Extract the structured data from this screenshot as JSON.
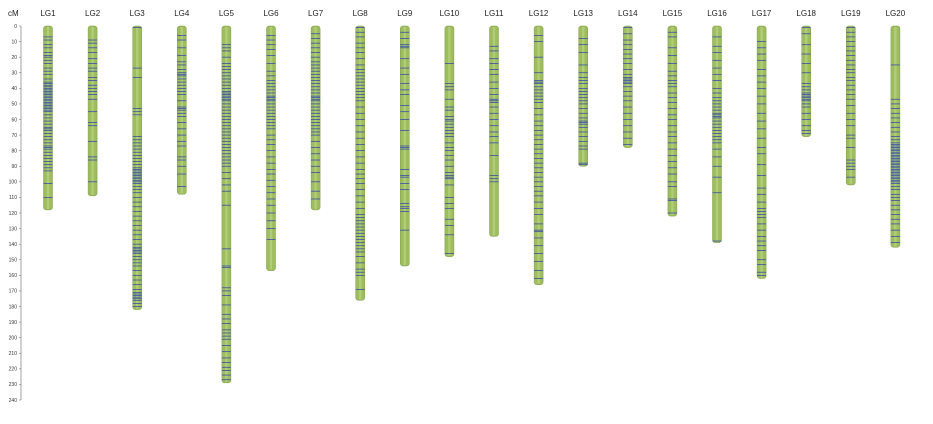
{
  "axis": {
    "label": "cM",
    "max": 240,
    "ticks": [
      0,
      10,
      20,
      30,
      40,
      50,
      60,
      70,
      80,
      90,
      100,
      110,
      120,
      130,
      140,
      150,
      160,
      170,
      180,
      190,
      200,
      210,
      220,
      230,
      240
    ]
  },
  "colors": {
    "bar": "#9dbd5f",
    "bar_edge": "#7f9c47",
    "marker": "#2b3fb5",
    "axis": "#666666"
  },
  "linkage_groups": [
    {
      "name": "LG1",
      "length": 118,
      "markers": [
        7,
        9,
        12,
        14,
        17,
        19,
        20,
        22,
        24,
        27,
        29,
        31,
        34,
        36,
        37,
        38,
        39,
        40,
        41,
        42,
        43,
        44,
        45,
        46,
        47,
        48,
        49,
        50,
        51,
        52,
        53,
        54,
        55,
        57,
        59,
        61,
        63,
        65,
        66,
        67,
        69,
        71,
        73,
        75,
        77,
        78,
        79,
        81,
        83,
        85,
        87,
        89,
        91,
        93,
        101,
        110
      ]
    },
    {
      "name": "LG2",
      "length": 109,
      "markers": [
        9,
        11,
        14,
        17,
        21,
        24,
        27,
        29,
        33,
        35,
        38,
        40,
        42,
        44,
        47,
        55,
        62,
        64,
        74,
        84,
        86,
        100
      ]
    },
    {
      "name": "LG3",
      "length": 182,
      "markers": [
        1,
        27,
        33,
        53,
        55,
        57,
        71,
        73,
        75,
        77,
        79,
        81,
        83,
        85,
        87,
        89,
        91,
        92,
        93,
        94,
        95,
        96,
        97,
        98,
        99,
        100,
        101,
        103,
        105,
        107,
        110,
        113,
        116,
        119,
        122,
        125,
        128,
        131,
        134,
        137,
        140,
        142,
        143,
        144,
        145,
        146,
        148,
        150,
        152,
        154,
        157,
        160,
        163,
        166,
        169,
        171,
        172,
        173,
        174,
        175,
        176,
        178,
        180
      ]
    },
    {
      "name": "LG4",
      "length": 108,
      "markers": [
        6,
        9,
        14,
        19,
        23,
        25,
        28,
        30,
        31,
        32,
        34,
        36,
        38,
        40,
        42,
        44,
        48,
        52,
        53,
        54,
        56,
        58,
        62,
        66,
        70,
        74,
        77,
        84,
        86,
        90,
        95,
        103
      ]
    },
    {
      "name": "LG5",
      "length": 229,
      "markers": [
        12,
        14,
        16,
        20,
        24,
        26,
        28,
        30,
        32,
        34,
        36,
        38,
        40,
        42,
        43,
        44,
        45,
        46,
        47,
        48,
        50,
        52,
        54,
        56,
        58,
        60,
        62,
        64,
        66,
        68,
        70,
        72,
        74,
        76,
        78,
        80,
        82,
        84,
        86,
        88,
        90,
        94,
        98,
        102,
        106,
        115,
        143,
        154,
        155,
        168,
        170,
        173,
        179,
        185,
        188,
        191,
        195,
        197,
        199,
        201,
        205,
        209,
        213,
        216,
        219,
        221,
        224,
        227
      ]
    },
    {
      "name": "LG6",
      "length": 157,
      "markers": [
        6,
        9,
        12,
        15,
        19,
        24,
        29,
        32,
        35,
        37,
        39,
        41,
        43,
        45,
        46,
        47,
        48,
        50,
        52,
        54,
        56,
        58,
        60,
        62,
        64,
        66,
        70,
        73,
        76,
        80,
        84,
        88,
        92,
        95,
        99,
        103,
        107,
        111,
        115,
        120,
        125,
        130,
        137
      ]
    },
    {
      "name": "LG7",
      "length": 118,
      "markers": [
        5,
        8,
        11,
        14,
        17,
        20,
        23,
        25,
        27,
        29,
        31,
        33,
        35,
        37,
        39,
        41,
        43,
        45,
        46,
        47,
        48,
        50,
        52,
        54,
        56,
        58,
        60,
        62,
        64,
        66,
        68,
        70,
        74,
        78,
        82,
        86,
        90,
        94,
        100,
        106,
        111
      ]
    },
    {
      "name": "LG8",
      "length": 176,
      "markers": [
        1,
        4,
        7,
        11,
        14,
        17,
        21,
        25,
        28,
        30,
        32,
        34,
        36,
        38,
        40,
        42,
        44,
        46,
        48,
        52,
        56,
        60,
        64,
        68,
        72,
        76,
        80,
        84,
        88,
        92,
        95,
        98,
        101,
        105,
        109,
        113,
        117,
        121,
        123,
        125,
        127,
        129,
        131,
        133,
        135,
        137,
        139,
        141,
        143,
        145,
        148,
        152,
        156,
        158,
        160,
        169
      ]
    },
    {
      "name": "LG9",
      "length": 154,
      "markers": [
        4,
        8,
        12,
        13,
        14,
        21,
        27,
        31,
        37,
        41,
        44,
        51,
        55,
        60,
        67,
        77,
        78,
        79,
        92,
        96,
        97,
        101,
        105,
        114,
        116,
        117,
        119,
        131
      ]
    },
    {
      "name": "LG10",
      "length": 148,
      "markers": [
        24,
        37,
        39,
        41,
        47,
        52,
        54,
        58,
        60,
        61,
        63,
        65,
        67,
        69,
        71,
        75,
        78,
        80,
        83,
        86,
        90,
        94,
        96,
        97,
        98,
        102,
        110,
        114,
        117,
        124,
        128,
        134,
        146
      ]
    },
    {
      "name": "LG11",
      "length": 135,
      "markers": [
        13,
        16,
        21,
        24,
        28,
        31,
        36,
        40,
        44,
        47,
        48,
        49,
        52,
        56,
        60,
        64,
        68,
        71,
        75,
        83,
        96,
        98,
        100
      ]
    },
    {
      "name": "LG12",
      "length": 166,
      "markers": [
        6,
        10,
        20,
        30,
        35,
        36,
        37,
        39,
        41,
        43,
        45,
        47,
        49,
        53,
        57,
        61,
        64,
        67,
        70,
        73,
        76,
        79,
        82,
        85,
        88,
        91,
        94,
        97,
        100,
        103,
        106,
        109,
        113,
        117,
        121,
        127,
        131,
        132,
        136,
        141,
        146,
        151,
        157,
        162
      ]
    },
    {
      "name": "LG13",
      "length": 90,
      "markers": [
        8,
        12,
        17,
        25,
        30,
        33,
        35,
        37,
        40,
        42,
        44,
        46,
        48,
        50,
        53,
        56,
        59,
        61,
        62,
        63,
        65,
        68,
        71,
        74,
        77,
        79,
        88,
        89
      ]
    },
    {
      "name": "LG14",
      "length": 78,
      "markers": [
        1,
        5,
        9,
        12,
        15,
        18,
        21,
        24,
        28,
        31,
        33,
        34,
        35,
        36,
        37,
        39,
        42,
        45,
        48,
        52,
        56,
        60,
        64,
        68,
        72,
        76
      ]
    },
    {
      "name": "LG15",
      "length": 122,
      "markers": [
        4,
        7,
        14,
        19,
        24,
        29,
        32,
        35,
        37,
        39,
        43,
        46,
        49,
        53,
        57,
        60,
        64,
        68,
        71,
        75,
        79,
        83,
        87,
        91,
        95,
        100,
        103,
        111,
        112,
        120
      ]
    },
    {
      "name": "LG16",
      "length": 139,
      "markers": [
        7,
        13,
        17,
        22,
        27,
        31,
        35,
        40,
        43,
        46,
        48,
        50,
        52,
        54,
        56,
        57,
        58,
        59,
        61,
        63,
        65,
        67,
        69,
        71,
        73,
        75,
        79,
        84,
        90,
        97,
        107,
        138
      ]
    },
    {
      "name": "LG17",
      "length": 162,
      "markers": [
        10,
        14,
        18,
        22,
        28,
        32,
        36,
        40,
        45,
        50,
        56,
        61,
        66,
        72,
        78,
        82,
        89,
        96,
        104,
        108,
        113,
        117,
        119,
        121,
        123,
        127,
        131,
        135,
        138,
        141,
        144,
        150,
        153,
        158,
        160
      ]
    },
    {
      "name": "LG18",
      "length": 71,
      "markers": [
        1,
        5,
        12,
        18,
        24,
        30,
        37,
        39,
        41,
        43,
        44,
        45,
        46,
        47,
        48,
        50,
        52,
        56,
        60,
        64,
        67,
        69
      ]
    },
    {
      "name": "LG19",
      "length": 102,
      "markers": [
        1,
        4,
        7,
        10,
        13,
        16,
        19,
        22,
        25,
        28,
        30,
        33,
        35,
        38,
        41,
        44,
        47,
        51,
        56,
        60,
        64,
        70,
        72,
        78,
        86,
        88,
        90,
        92,
        97
      ]
    },
    {
      "name": "LG20",
      "length": 142,
      "markers": [
        25,
        47,
        50,
        53,
        56,
        59,
        62,
        65,
        68,
        71,
        73,
        75,
        76,
        77,
        78,
        79,
        80,
        81,
        82,
        83,
        84,
        85,
        86,
        87,
        88,
        89,
        90,
        91,
        92,
        93,
        94,
        95,
        96,
        97,
        98,
        99,
        100,
        101,
        103,
        105,
        108,
        110,
        112,
        115,
        118,
        121,
        124,
        127,
        131,
        135,
        139
      ]
    }
  ]
}
